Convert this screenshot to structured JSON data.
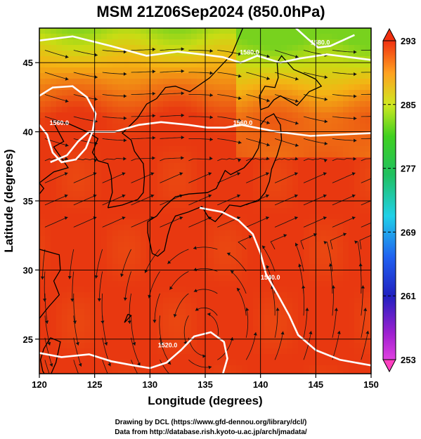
{
  "chart_data": {
    "type": "heatmap",
    "title": "MSM 21Z06Sep2024 (850.0hPa)",
    "xlabel": "Longitude (degrees)",
    "ylabel": "Latitude  (degrees)",
    "xlim": [
      120,
      150
    ],
    "ylim": [
      22.5,
      47.5
    ],
    "xticks": [
      120,
      125,
      130,
      135,
      140,
      145,
      150
    ],
    "yticks": [
      25,
      30,
      35,
      40,
      45
    ],
    "grid": true,
    "colorbar": {
      "ticks": [
        253,
        261,
        269,
        277,
        285,
        293
      ],
      "range": [
        253,
        293
      ],
      "orientation": "vertical",
      "placement": "right"
    },
    "contours": [
      {
        "value": "1520.0"
      },
      {
        "value": "1540.0"
      },
      {
        "value": "1560.0"
      },
      {
        "value": "1580.0"
      }
    ],
    "overlay": "streamlines",
    "credits": [
      "Drawing by DCL (https://www.gfd-dennou.org/library/dcl/)",
      "Data from http://database.rish.kyoto-u.ac.jp/arch/jmadata/"
    ]
  }
}
